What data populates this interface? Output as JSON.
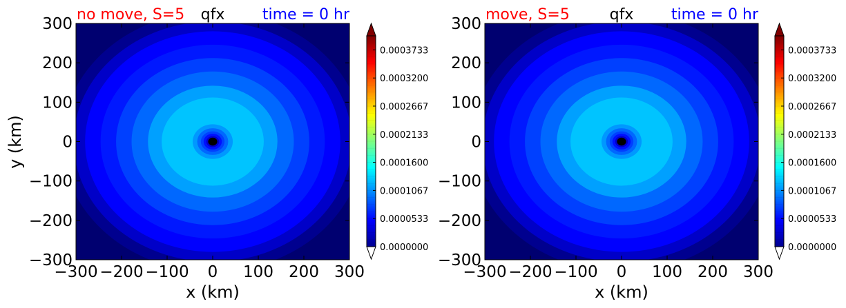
{
  "chart_data": [
    {
      "type": "heatmap",
      "panel": "left",
      "title_left": "no move, S=5",
      "title_center": "qfx",
      "title_right": "time = 0 hr",
      "xlabel": "x (km)",
      "ylabel": "y (km)",
      "xlim": [
        -300,
        300
      ],
      "ylim": [
        -300,
        300
      ],
      "xticks": [
        "−300",
        "−200",
        "−100",
        "0",
        "100",
        "200",
        "300"
      ],
      "yticks": [
        "300",
        "200",
        "100",
        "0",
        "−100",
        "−200",
        "−300"
      ],
      "levels_km": [
        {
          "r": 330,
          "color": "#00008f"
        },
        {
          "r": 305,
          "color": "#0000c8"
        },
        {
          "r": 280,
          "color": "#0000ff"
        },
        {
          "r": 246,
          "color": "#0018ff"
        },
        {
          "r": 212,
          "color": "#0040ff"
        },
        {
          "r": 178,
          "color": "#0068ff"
        },
        {
          "r": 142,
          "color": "#00a0ff"
        },
        {
          "r": 112,
          "color": "#00c4ff"
        },
        {
          "r": 44,
          "color": "#0098ff"
        },
        {
          "r": 34,
          "color": "#0068ff"
        },
        {
          "r": 26,
          "color": "#0040ff"
        },
        {
          "r": 20,
          "color": "#0010ff"
        },
        {
          "r": 14,
          "color": "#0000c8"
        },
        {
          "r": 10,
          "color": "#000000"
        }
      ],
      "colorbar": {
        "ticks": [
          "0.0003733",
          "0.0003200",
          "0.0002667",
          "0.0002133",
          "0.0001600",
          "0.0001067",
          "0.0000533",
          "0.0000000"
        ],
        "min": 0.0,
        "max": 0.0004,
        "extend": "both",
        "over_color": "#800000",
        "under_color": "#ffffff"
      }
    },
    {
      "type": "heatmap",
      "panel": "right",
      "title_left": "move, S=5",
      "title_center": "qfx",
      "title_right": "time = 0 hr",
      "xlabel": "x (km)",
      "ylabel": "",
      "xlim": [
        -300,
        300
      ],
      "ylim": [
        -300,
        300
      ],
      "xticks": [
        "−300",
        "−200",
        "−100",
        "0",
        "100",
        "200",
        "300"
      ],
      "yticks": [
        "300",
        "200",
        "100",
        "0",
        "−100",
        "−200",
        "−300"
      ],
      "levels_km": [
        {
          "r": 330,
          "color": "#00008f"
        },
        {
          "r": 305,
          "color": "#0000c8"
        },
        {
          "r": 280,
          "color": "#0000ff"
        },
        {
          "r": 246,
          "color": "#0018ff"
        },
        {
          "r": 212,
          "color": "#0040ff"
        },
        {
          "r": 178,
          "color": "#0068ff"
        },
        {
          "r": 142,
          "color": "#00a0ff"
        },
        {
          "r": 112,
          "color": "#00c4ff"
        },
        {
          "r": 44,
          "color": "#0098ff"
        },
        {
          "r": 34,
          "color": "#0068ff"
        },
        {
          "r": 26,
          "color": "#0040ff"
        },
        {
          "r": 20,
          "color": "#0010ff"
        },
        {
          "r": 14,
          "color": "#0000c8"
        },
        {
          "r": 10,
          "color": "#000000"
        }
      ],
      "colorbar": {
        "ticks": [
          "0.0003733",
          "0.0003200",
          "0.0002667",
          "0.0002133",
          "0.0001600",
          "0.0001067",
          "0.0000533",
          "0.0000000"
        ],
        "min": 0.0,
        "max": 0.0004,
        "extend": "both",
        "over_color": "#800000",
        "under_color": "#ffffff"
      }
    }
  ],
  "jet_stops": [
    "#00008f",
    "#0000ff",
    "#0080ff",
    "#00ffff",
    "#80ff80",
    "#ffff00",
    "#ff8000",
    "#ff0000",
    "#800000"
  ]
}
